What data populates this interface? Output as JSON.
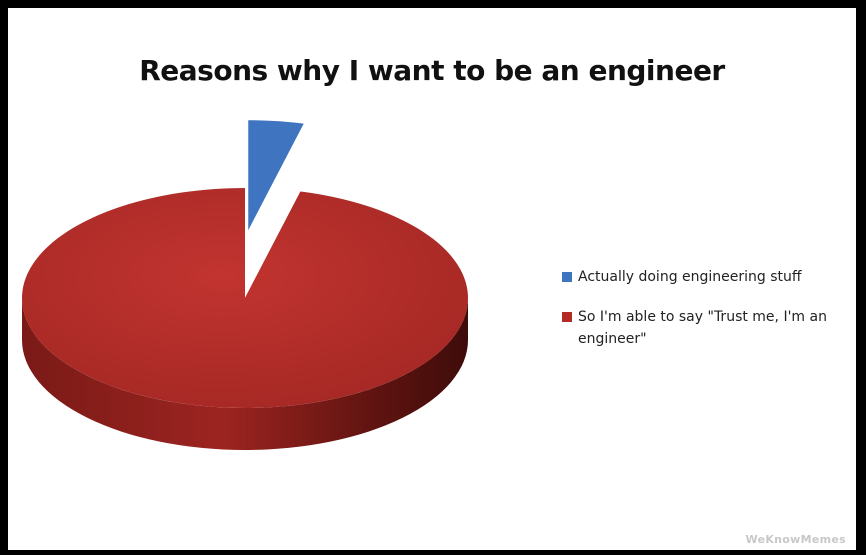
{
  "chart_data": {
    "type": "pie",
    "title": "Reasons why I want to be an engineer",
    "slices": [
      {
        "label": "Actually doing engineering stuff",
        "value": 4,
        "color": "#3f74c0",
        "exploded": true
      },
      {
        "label": "So I'm able to say \"Trust me, I'm an engineer\"",
        "value": 96,
        "color": "#b32b27",
        "exploded": false
      }
    ],
    "legend_position": "right",
    "style": "3d"
  },
  "watermark": "WeKnowMemes"
}
